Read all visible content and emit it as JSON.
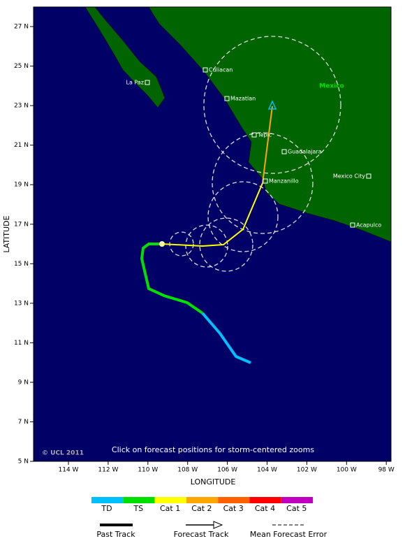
{
  "map": {
    "x_axis_title": "LONGITUDE",
    "y_axis_title": "LATITUDE",
    "lon_ticks": [
      "114 W",
      "112 W",
      "110 W",
      "108 W",
      "106 W",
      "104 W",
      "102 W",
      "100 W",
      "98 W"
    ],
    "lat_ticks": [
      "27 N",
      "25 N",
      "23 N",
      "21 N",
      "19 N",
      "17 N",
      "15 N",
      "13 N",
      "11 N",
      "9 N",
      "7 N",
      "5 N"
    ],
    "cities": [
      "Culiacan",
      "La Paz",
      "Mazatlan",
      "Tepic",
      "Guadalajara",
      "Manzanillo",
      "Mexico City",
      "Acapulco"
    ],
    "country": "Mexico",
    "copyright": "© UCL 2011",
    "note": "Click on forecast positions for storm-centered zooms"
  },
  "legend": {
    "intensity": [
      "TD",
      "TS",
      "Cat 1",
      "Cat 2",
      "Cat 3",
      "Cat 4",
      "Cat 5"
    ],
    "tracks": [
      "Past Track",
      "Forecast Track",
      "Mean Forecast Error"
    ]
  }
}
